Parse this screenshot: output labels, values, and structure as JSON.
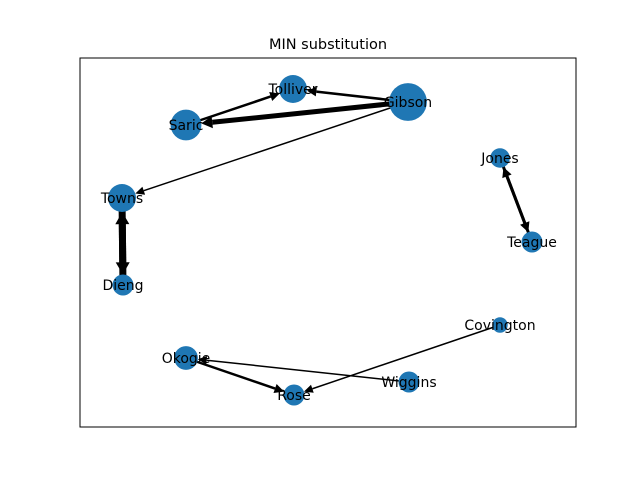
{
  "title": "MIN substitution",
  "colors": {
    "node": "#1f77b4",
    "edge": "#000000",
    "frame": "#000000",
    "background": "#ffffff"
  },
  "nodes": [
    {
      "id": "Tolliver",
      "label": "Tolliver",
      "size": 1.0
    },
    {
      "id": "Gibson",
      "label": "Gibson",
      "size": 1.35
    },
    {
      "id": "Saric",
      "label": "Saric",
      "size": 1.1
    },
    {
      "id": "Towns",
      "label": "Towns",
      "size": 1.0
    },
    {
      "id": "Dieng",
      "label": "Dieng",
      "size": 0.75
    },
    {
      "id": "Jones",
      "label": "Jones",
      "size": 0.7
    },
    {
      "id": "Teague",
      "label": "Teague",
      "size": 0.75
    },
    {
      "id": "Covington",
      "label": "Covington",
      "size": 0.55
    },
    {
      "id": "Okogie",
      "label": "Okogie",
      "size": 0.85
    },
    {
      "id": "Wiggins",
      "label": "Wiggins",
      "size": 0.75
    },
    {
      "id": "Rose",
      "label": "Rose",
      "size": 0.75
    }
  ],
  "edges": [
    {
      "source": "Gibson",
      "target": "Saric",
      "weight": 5
    },
    {
      "source": "Gibson",
      "target": "Tolliver",
      "weight": 2.5
    },
    {
      "source": "Saric",
      "target": "Tolliver",
      "weight": 2.5
    },
    {
      "source": "Gibson",
      "target": "Towns",
      "weight": 1.5
    },
    {
      "source": "Towns",
      "target": "Dieng",
      "weight": 7
    },
    {
      "source": "Dieng",
      "target": "Towns",
      "weight": 7
    },
    {
      "source": "Jones",
      "target": "Teague",
      "weight": 3
    },
    {
      "source": "Teague",
      "target": "Jones",
      "weight": 3
    },
    {
      "source": "Covington",
      "target": "Rose",
      "weight": 1.5
    },
    {
      "source": "Okogie",
      "target": "Rose",
      "weight": 2.5
    },
    {
      "source": "Wiggins",
      "target": "Okogie",
      "weight": 1.5
    }
  ]
}
